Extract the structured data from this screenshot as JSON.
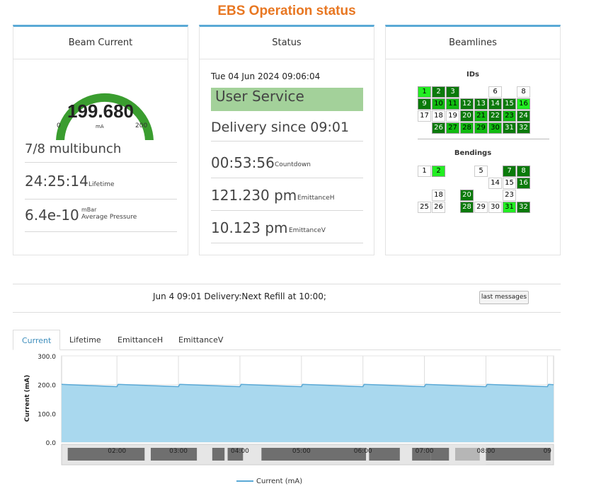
{
  "page_title": "EBS Operation status",
  "beam_current": {
    "header": "Beam Current",
    "gauge_value": "199.680",
    "gauge_fraction": 0.9984,
    "gauge_min": "0",
    "gauge_unit": "mA",
    "gauge_max": "200",
    "mode": "7/8 multibunch",
    "lifetime_value": "24:25:14",
    "lifetime_label": "Lifetime",
    "pressure_value": "6.4e-10",
    "pressure_unit": "mBar",
    "pressure_label": "Average Pressure"
  },
  "status": {
    "header": "Status",
    "datetime": "Tue 04 Jun 2024 09:06:04",
    "mode_badge": "User Service",
    "delivery": "Delivery since 09:01",
    "countdown_value": "00:53:56",
    "countdown_label": "Countdown",
    "emittanceh_value": "121.230 pm",
    "emittanceh_label": "EmittanceH",
    "emittancev_value": "10.123 pm",
    "emittancev_label": "EmittanceV"
  },
  "beamlines": {
    "header": "Beamlines",
    "ids_title": "IDs",
    "bendings_title": "Bendings",
    "ids": [
      {
        "label": "1",
        "state": "l"
      },
      {
        "label": "2",
        "state": "d"
      },
      {
        "label": "3",
        "state": "d"
      },
      {
        "label": "6",
        "state": "w"
      },
      {
        "label": "8",
        "state": "w"
      },
      {
        "label": "9",
        "state": "d"
      },
      {
        "label": "10",
        "state": "m"
      },
      {
        "label": "11",
        "state": "m"
      },
      {
        "label": "12",
        "state": "d"
      },
      {
        "label": "13",
        "state": "d"
      },
      {
        "label": "14",
        "state": "d"
      },
      {
        "label": "15",
        "state": "d"
      },
      {
        "label": "16",
        "state": "l"
      },
      {
        "label": "17",
        "state": "w"
      },
      {
        "label": "18",
        "state": "w"
      },
      {
        "label": "19",
        "state": "w"
      },
      {
        "label": "20",
        "state": "d"
      },
      {
        "label": "21",
        "state": "m"
      },
      {
        "label": "22",
        "state": "d"
      },
      {
        "label": "23",
        "state": "m"
      },
      {
        "label": "24",
        "state": "d"
      },
      {
        "label": "26",
        "state": "d"
      },
      {
        "label": "27",
        "state": "m"
      },
      {
        "label": "28",
        "state": "m"
      },
      {
        "label": "29",
        "state": "m"
      },
      {
        "label": "30",
        "state": "m"
      },
      {
        "label": "31",
        "state": "d"
      },
      {
        "label": "32",
        "state": "d"
      }
    ],
    "bendings": [
      {
        "label": "1",
        "state": "w"
      },
      {
        "label": "2",
        "state": "l"
      },
      {
        "label": "5",
        "state": "w"
      },
      {
        "label": "7",
        "state": "d"
      },
      {
        "label": "8",
        "state": "d"
      },
      {
        "label": "14",
        "state": "w"
      },
      {
        "label": "15",
        "state": "w"
      },
      {
        "label": "16",
        "state": "d"
      },
      {
        "label": "18",
        "state": "w"
      },
      {
        "label": "20",
        "state": "d"
      },
      {
        "label": "23",
        "state": "w"
      },
      {
        "label": "25",
        "state": "w"
      },
      {
        "label": "26",
        "state": "w"
      },
      {
        "label": "28",
        "state": "d"
      },
      {
        "label": "29",
        "state": "w"
      },
      {
        "label": "30",
        "state": "w"
      },
      {
        "label": "31",
        "state": "l"
      },
      {
        "label": "32",
        "state": "d"
      }
    ]
  },
  "message_bar": {
    "text": "Jun  4 09:01 Delivery:Next Refill at 10:00;",
    "button_label": "last messages"
  },
  "tabs": [
    "Current",
    "Lifetime",
    "EmittanceH",
    "EmittanceV"
  ],
  "colors": {
    "accent": "#e87722",
    "tab_accent": "#3c8dbc",
    "panel_border": "#5aa9d6",
    "gauge_green": "#3a9d2f",
    "badge_green": "#a3d19a"
  },
  "chart_data": {
    "type": "area",
    "title": "",
    "ylabel": "Current (mA)",
    "xlabel": "",
    "ylim": [
      0,
      300
    ],
    "y_ticks": [
      "0.0",
      "100.0",
      "200.0",
      "300.0"
    ],
    "x_range_hours": [
      1.1,
      9.1
    ],
    "x_ticks": [
      "02:00",
      "03:00",
      "04:00",
      "05:00",
      "06:00",
      "07:00",
      "08:00",
      "09"
    ],
    "series": [
      {
        "name": "Current (mA)",
        "x": [
          1.1,
          2.0,
          2.02,
          3.0,
          3.02,
          4.0,
          4.02,
          5.0,
          5.02,
          6.0,
          6.02,
          7.0,
          7.02,
          8.0,
          8.02,
          9.0,
          9.02,
          9.1
        ],
        "y": [
          201,
          193,
          201,
          193,
          201,
          193,
          201,
          193,
          201,
          193,
          201,
          193,
          201,
          193,
          201,
          193,
          201,
          200
        ]
      }
    ],
    "legend": [
      "Current (mA)"
    ]
  }
}
